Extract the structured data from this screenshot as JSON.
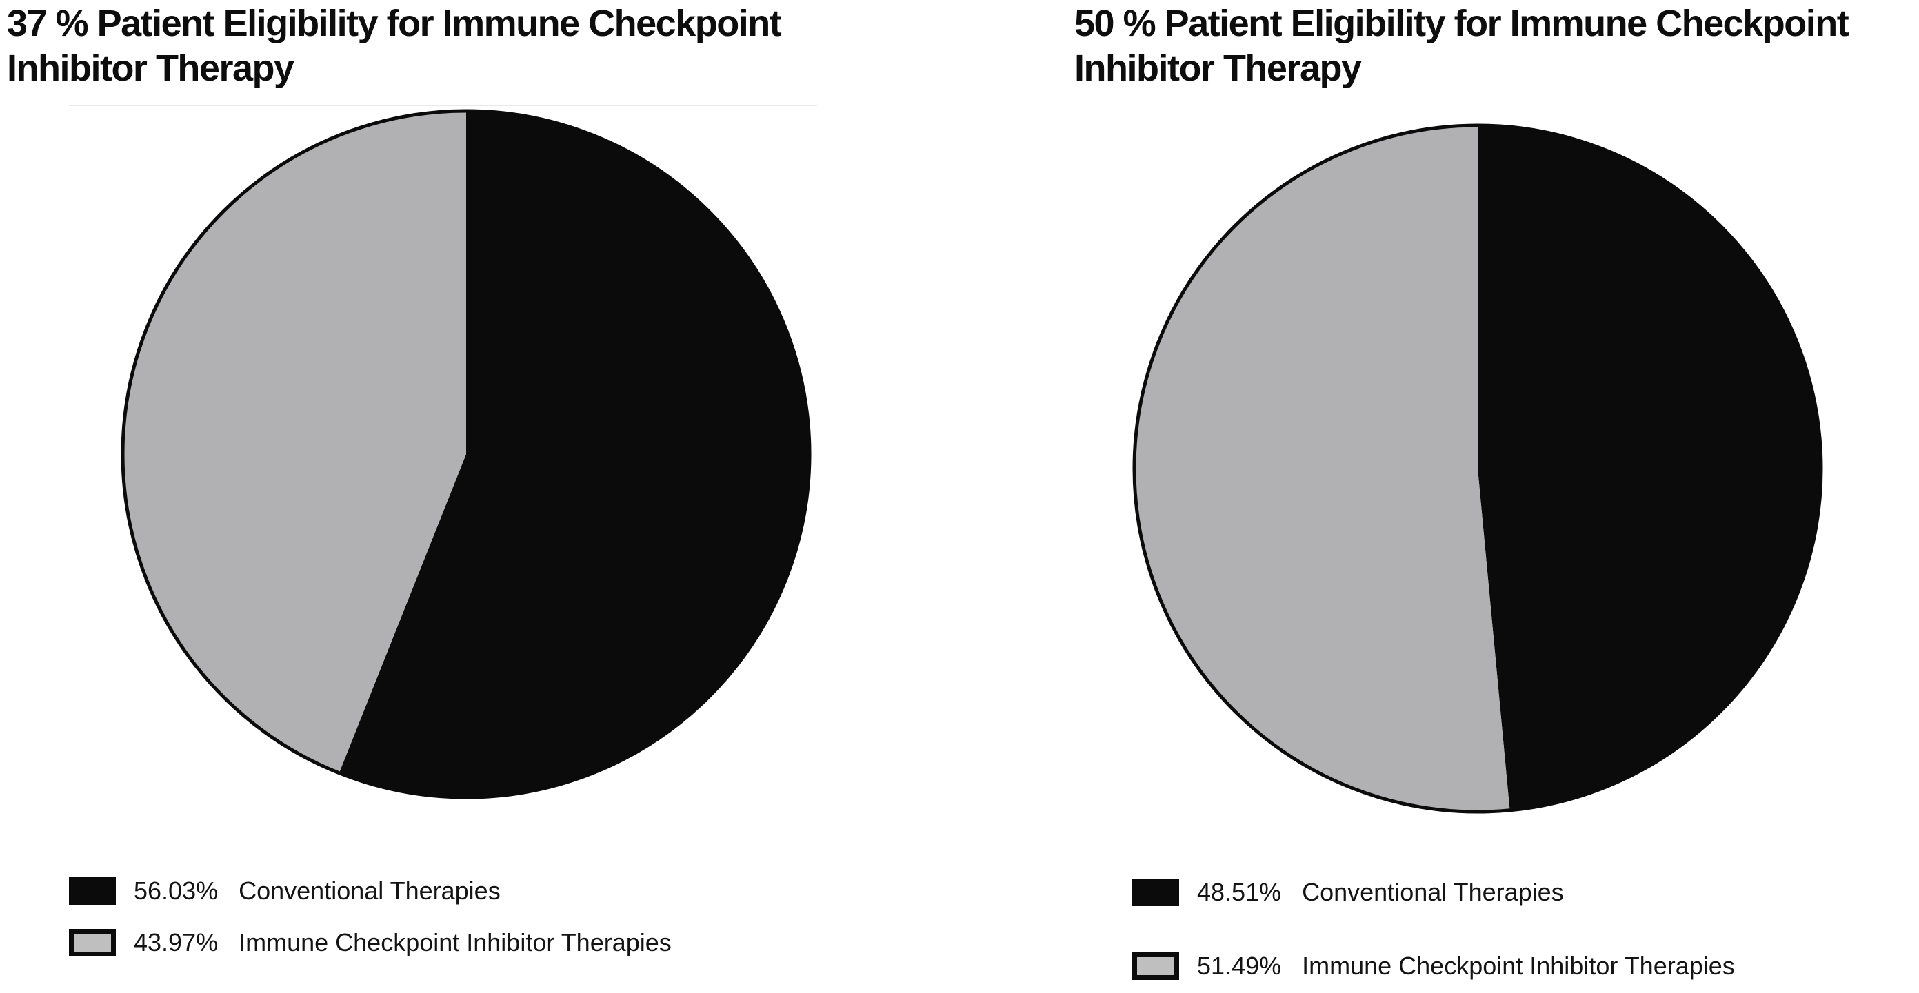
{
  "figure": {
    "background_color": "#ffffff",
    "outline_color": "#0b0b0b",
    "divider_color": "#e9e9e9"
  },
  "chart_data": [
    {
      "type": "pie",
      "title": "37 % Patient Eligibility for Immune Checkpoint Inhibitor Therapy",
      "start_angle_deg": 0,
      "direction": "clockwise",
      "legend_position": "bottom-left",
      "outline_color": "#0b0b0b",
      "slices": [
        {
          "label": "Conventional Therapies",
          "value_pct": 56.03,
          "display": "56.03%",
          "color": "#0b0b0b",
          "swatch_fill": "#0b0b0b"
        },
        {
          "label": "Immune Checkpoint Inhibitor Therapies",
          "value_pct": 43.97,
          "display": "43.97%",
          "color": "#b1b1b3",
          "swatch_fill": "#bfbfbf"
        }
      ]
    },
    {
      "type": "pie",
      "title": "50 % Patient Eligibility for Immune Checkpoint Inhibitor Therapy",
      "start_angle_deg": 0,
      "direction": "clockwise",
      "legend_position": "bottom-left",
      "outline_color": "#0b0b0b",
      "slices": [
        {
          "label": "Conventional Therapies",
          "value_pct": 48.51,
          "display": "48.51%",
          "color": "#0b0b0b",
          "swatch_fill": "#0b0b0b"
        },
        {
          "label": "Immune Checkpoint Inhibitor Therapies",
          "value_pct": 51.49,
          "display": "51.49%",
          "color": "#b1b1b3",
          "swatch_fill": "#bfbfbf"
        }
      ]
    }
  ]
}
